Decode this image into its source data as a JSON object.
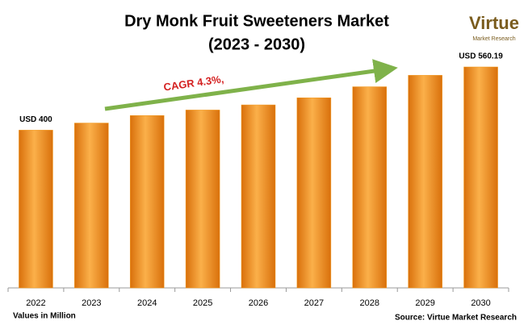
{
  "chart_data": {
    "type": "bar",
    "title": "Dry Monk Fruit Sweeteners Market",
    "subtitle": "(2023 - 2030)",
    "categories": [
      "2022",
      "2023",
      "2024",
      "2025",
      "2026",
      "2027",
      "2028",
      "2029",
      "2030"
    ],
    "values": [
      400,
      418,
      437,
      451,
      464,
      482,
      510,
      539,
      560.19
    ],
    "value_labels": [
      "USD 400",
      null,
      null,
      null,
      null,
      null,
      null,
      null,
      "USD 560.19"
    ],
    "color": "#f39a1e",
    "annotation": "CAGR 4.3%,",
    "note": "Values in Million",
    "source": "Source: Virtue Market Research",
    "logo": {
      "name": "Virtue",
      "tagline": "Market Research"
    }
  }
}
